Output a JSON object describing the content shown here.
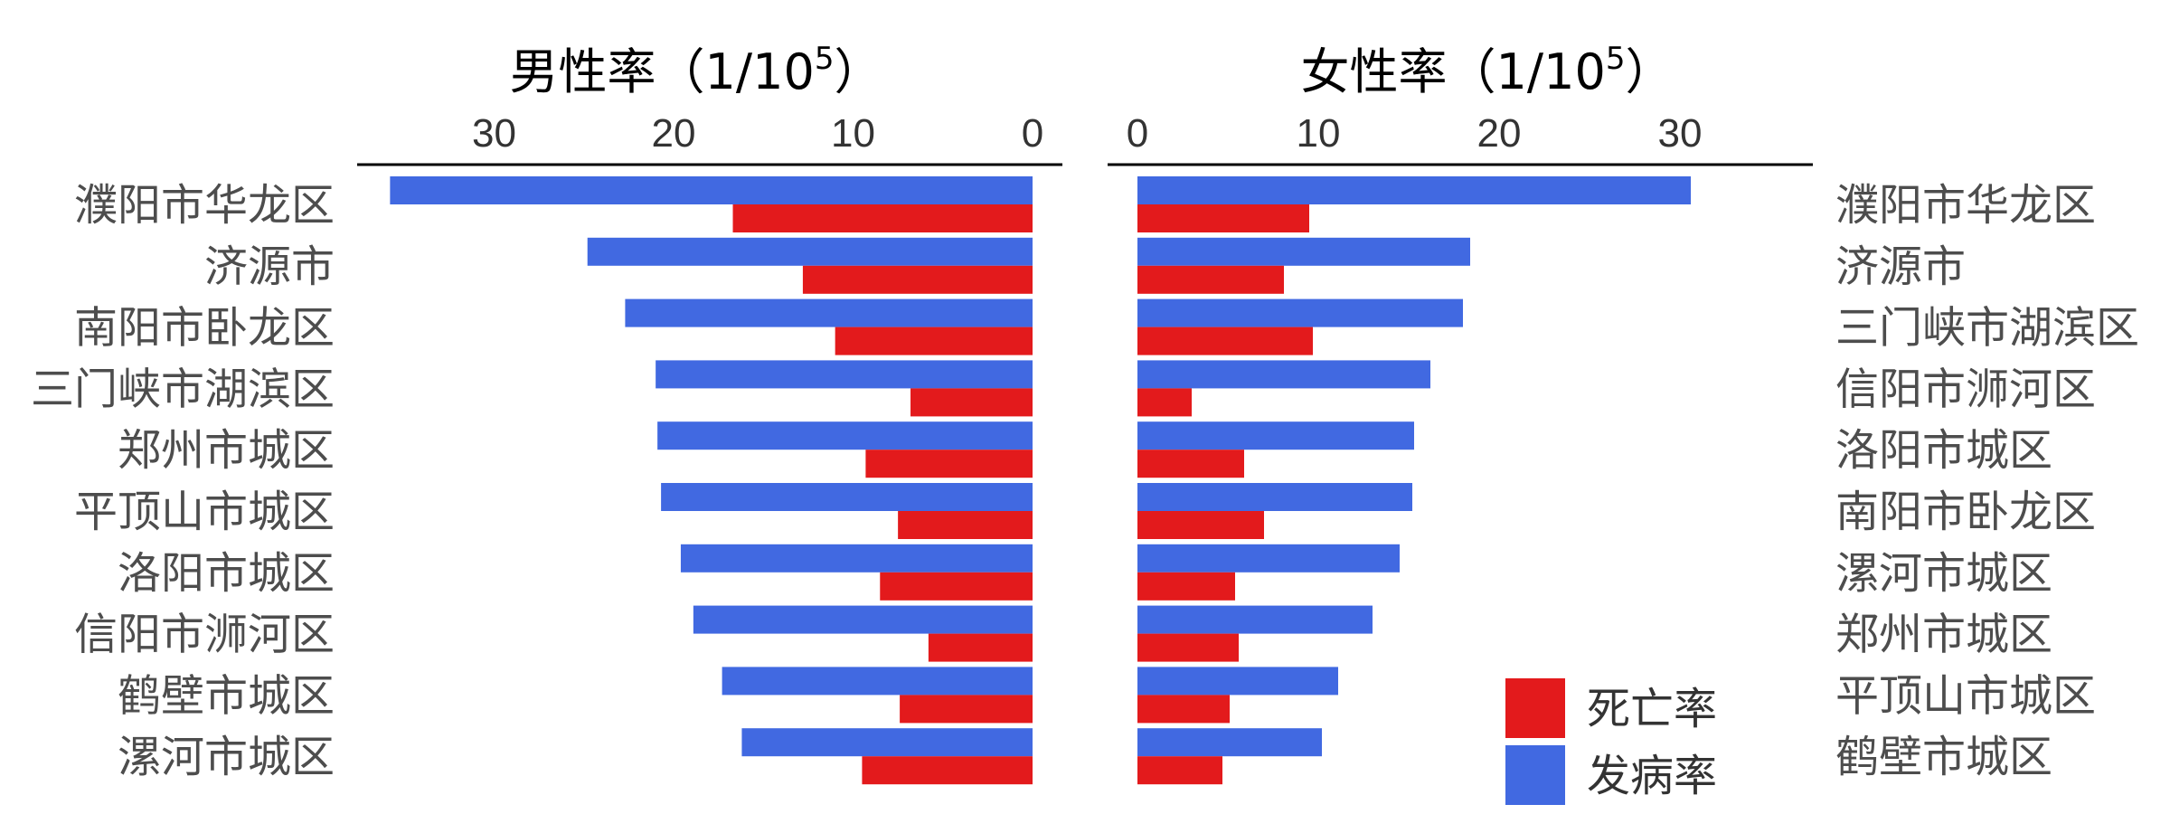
{
  "colors": {
    "incidence": "#4169E1",
    "mortality": "#E31A1C"
  },
  "legend": [
    {
      "key": "mortality",
      "label": "死亡率"
    },
    {
      "key": "incidence",
      "label": "发病率"
    }
  ],
  "chart_data": [
    {
      "type": "bar",
      "orientation": "horizontal",
      "direction": "leftward",
      "title_main": "男性率（1/10",
      "title_sup": "5",
      "title_tail": "）",
      "title": "男性率（1/10⁵）",
      "xlim": [
        0,
        36
      ],
      "xticks": [
        30,
        20,
        10,
        0
      ],
      "categories": [
        "濮阳市华龙区",
        "济源市",
        "南阳市卧龙区",
        "三门峡市湖滨区",
        "郑州市城区",
        "平顶山市城区",
        "洛阳市城区",
        "信阳市浉河区",
        "鹤壁市城区",
        "漯河市城区"
      ],
      "series": [
        {
          "name": "发病率",
          "key": "incidence",
          "values": [
            35.8,
            24.8,
            22.7,
            21.0,
            20.9,
            20.7,
            19.6,
            18.9,
            17.3,
            16.2
          ]
        },
        {
          "name": "死亡率",
          "key": "mortality",
          "values": [
            16.7,
            12.8,
            11.0,
            6.8,
            9.3,
            7.5,
            8.5,
            5.8,
            7.4,
            9.5
          ]
        }
      ]
    },
    {
      "type": "bar",
      "orientation": "horizontal",
      "direction": "rightward",
      "title_main": "女性率（1/10",
      "title_sup": "5",
      "title_tail": "）",
      "title": "女性率（1/10⁵）",
      "xlim": [
        0,
        36
      ],
      "xticks": [
        0,
        10,
        20,
        30
      ],
      "categories": [
        "濮阳市华龙区",
        "济源市",
        "三门峡市湖滨区",
        "信阳市浉河区",
        "洛阳市城区",
        "南阳市卧龙区",
        "漯河市城区",
        "郑州市城区",
        "平顶山市城区",
        "鹤壁市城区"
      ],
      "series": [
        {
          "name": "发病率",
          "key": "incidence",
          "values": [
            30.6,
            18.4,
            18.0,
            16.2,
            15.3,
            15.2,
            14.5,
            13.0,
            11.1,
            10.2
          ]
        },
        {
          "name": "死亡率",
          "key": "mortality",
          "values": [
            9.5,
            8.1,
            9.7,
            3.0,
            5.9,
            7.0,
            5.4,
            5.6,
            5.1,
            4.7
          ]
        }
      ]
    }
  ]
}
